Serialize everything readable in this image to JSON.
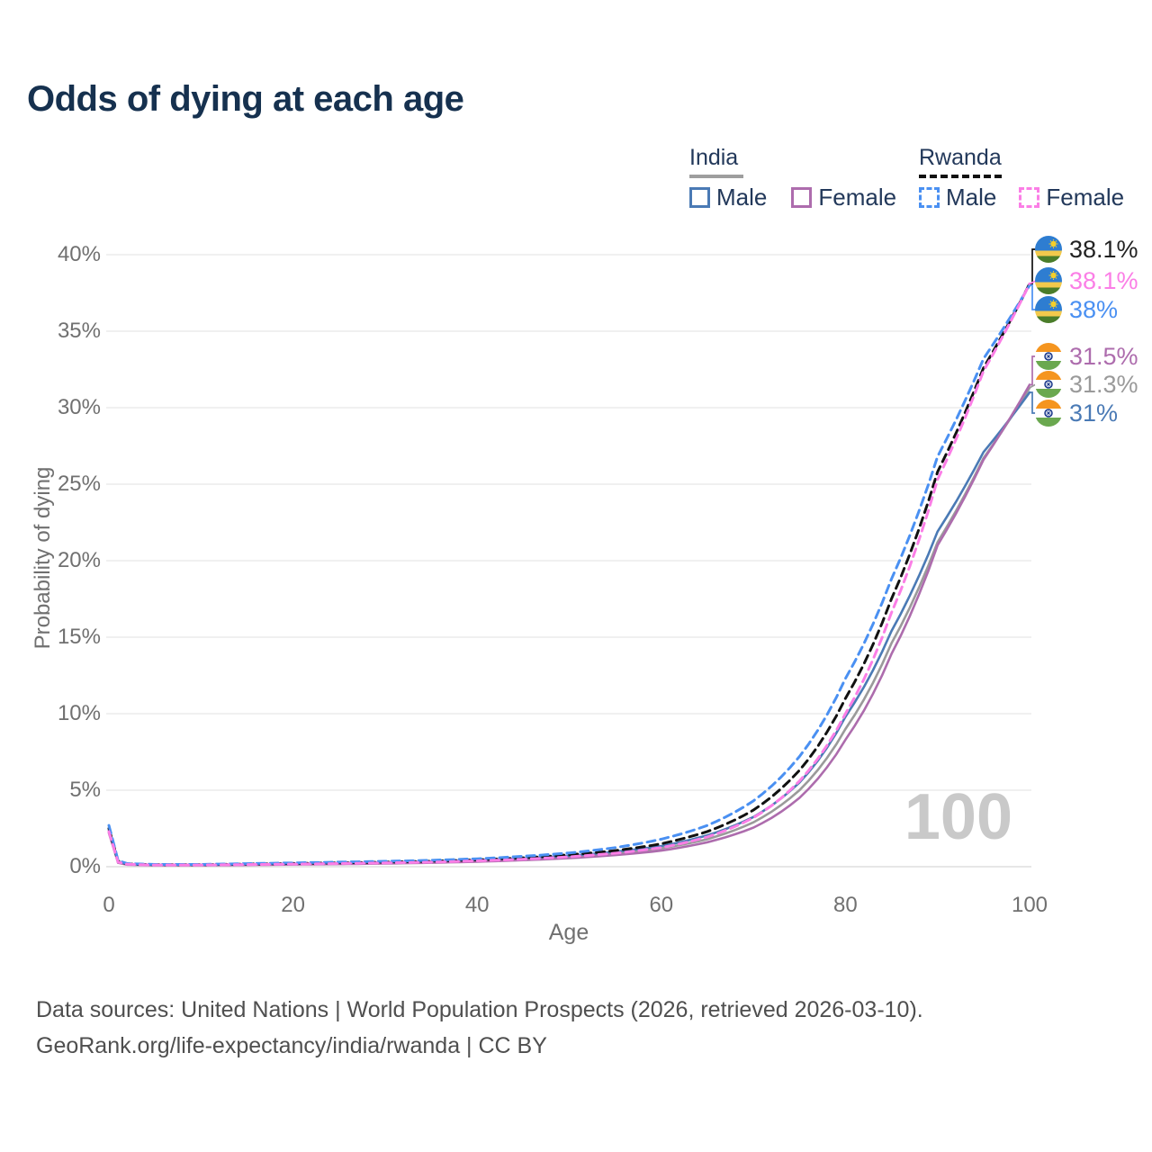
{
  "title": "Odds of dying at each age",
  "legend": {
    "groups": [
      {
        "label": "India",
        "line_style": "solid",
        "underline_color": "#9e9e9e",
        "items": [
          {
            "label": "Male",
            "color": "#4a7ab5"
          },
          {
            "label": "Female",
            "color": "#ad6cad"
          }
        ]
      },
      {
        "label": "Rwanda",
        "line_style": "dashed",
        "underline_color": "#111111",
        "items": [
          {
            "label": "Male",
            "color": "#4a90f2"
          },
          {
            "label": "Female",
            "color": "#fb7ee6"
          }
        ]
      }
    ]
  },
  "chart_data": {
    "type": "line",
    "title": "Odds of dying at each age",
    "xlabel": "Age",
    "ylabel": "Probability of dying",
    "xlim": [
      0,
      100
    ],
    "ylim": [
      0,
      40
    ],
    "x_ticks": [
      "0",
      "20",
      "40",
      "60",
      "80",
      "100"
    ],
    "y_ticks": [
      "0%",
      "5%",
      "10%",
      "15%",
      "20%",
      "25%",
      "30%",
      "35%",
      "40%"
    ],
    "grid": "horizontal",
    "legend_position": "top-right",
    "hover_age": "100",
    "ages": [
      0,
      1,
      2,
      5,
      10,
      15,
      20,
      25,
      30,
      35,
      40,
      45,
      50,
      55,
      60,
      65,
      70,
      75,
      80,
      85,
      90,
      95,
      100
    ],
    "series": [
      {
        "name": "India Male",
        "country": "India",
        "sex": "Male",
        "color": "#4a7ab5",
        "dash": false,
        "values": [
          2.4,
          0.3,
          0.16,
          0.11,
          0.11,
          0.14,
          0.18,
          0.22,
          0.27,
          0.33,
          0.42,
          0.54,
          0.72,
          0.98,
          1.35,
          2.05,
          3.25,
          5.5,
          9.8,
          15.4,
          21.9,
          27.1,
          31.0
        ],
        "end_label": "31%"
      },
      {
        "name": "India Female",
        "country": "India",
        "sex": "Female",
        "color": "#ad6cad",
        "dash": false,
        "values": [
          2.2,
          0.26,
          0.13,
          0.09,
          0.09,
          0.11,
          0.14,
          0.17,
          0.21,
          0.26,
          0.33,
          0.43,
          0.56,
          0.76,
          1.05,
          1.6,
          2.55,
          4.5,
          8.3,
          13.9,
          21.0,
          26.6,
          31.5
        ],
        "end_label": "31.5%"
      },
      {
        "name": "India Both",
        "country": "India",
        "sex": "Both",
        "color": "#9a9a9a",
        "dash": false,
        "values": [
          2.3,
          0.28,
          0.14,
          0.1,
          0.1,
          0.13,
          0.16,
          0.2,
          0.24,
          0.3,
          0.38,
          0.49,
          0.64,
          0.87,
          1.2,
          1.8,
          2.9,
          5.0,
          9.0,
          14.6,
          21.2,
          26.7,
          31.3
        ],
        "end_label": "31.3%"
      },
      {
        "name": "Rwanda Male",
        "country": "Rwanda",
        "sex": "Male",
        "color": "#4a90f2",
        "dash": true,
        "values": [
          2.7,
          0.4,
          0.2,
          0.15,
          0.15,
          0.2,
          0.25,
          0.3,
          0.35,
          0.42,
          0.52,
          0.68,
          0.9,
          1.25,
          1.8,
          2.7,
          4.3,
          7.2,
          12.3,
          18.8,
          26.8,
          33.2,
          38.0
        ],
        "end_label": "38%"
      },
      {
        "name": "Rwanda Female",
        "country": "Rwanda",
        "sex": "Female",
        "color": "#fb7ee6",
        "dash": true,
        "values": [
          2.3,
          0.3,
          0.16,
          0.11,
          0.11,
          0.14,
          0.17,
          0.21,
          0.25,
          0.3,
          0.38,
          0.49,
          0.65,
          0.88,
          1.25,
          1.95,
          3.2,
          5.6,
          10.0,
          16.6,
          25.3,
          32.4,
          38.1
        ],
        "end_label": "38.1%"
      },
      {
        "name": "Rwanda Both",
        "country": "Rwanda",
        "sex": "Both",
        "color": "#111111",
        "dash": true,
        "values": [
          2.5,
          0.35,
          0.18,
          0.13,
          0.13,
          0.17,
          0.21,
          0.25,
          0.3,
          0.36,
          0.45,
          0.58,
          0.78,
          1.05,
          1.5,
          2.3,
          3.7,
          6.3,
          11.0,
          17.5,
          25.8,
          32.6,
          38.1
        ],
        "end_label": "38.1%"
      }
    ]
  },
  "end_labels": [
    {
      "flag": "rwanda",
      "value": "38.1%",
      "color": "#222222"
    },
    {
      "flag": "rwanda",
      "value": "38.1%",
      "color": "#fb7ee6"
    },
    {
      "flag": "rwanda",
      "value": "38%",
      "color": "#4a90f2"
    },
    {
      "flag": "india",
      "value": "31.5%",
      "color": "#ad6cad"
    },
    {
      "flag": "india",
      "value": "31.3%",
      "color": "#9a9a9a"
    },
    {
      "flag": "india",
      "value": "31%",
      "color": "#4a7ab5"
    }
  ],
  "footer": {
    "line1": "Data sources: United Nations | World Population Prospects (2026, retrieved 2026-03-10).",
    "line2": "GeoRank.org/life-expectancy/india/rwanda | CC BY"
  }
}
